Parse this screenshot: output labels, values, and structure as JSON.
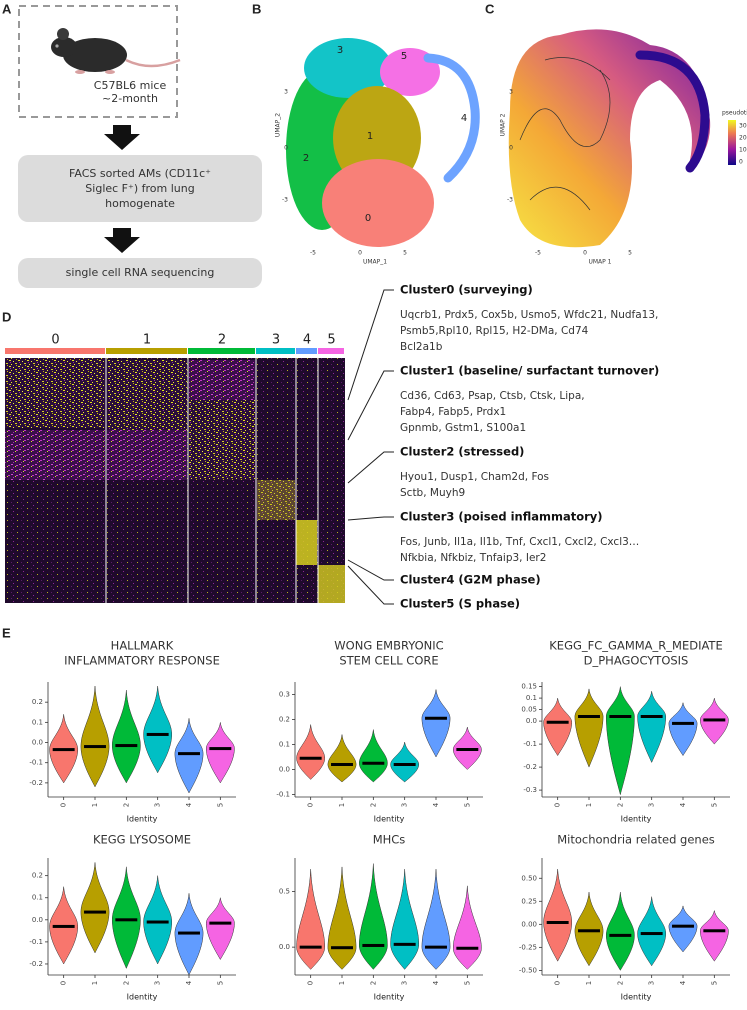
{
  "panel_labels": [
    "A",
    "B",
    "C",
    "D",
    "E"
  ],
  "panel_a": {
    "mouse_label": [
      "C57BL6 mice",
      "~2-month"
    ],
    "steps": [
      [
        "FACS sorted AMs (CD11c⁺",
        "Siglec F⁺) from lung",
        "homogenate"
      ],
      [
        "single cell RNA sequencing"
      ]
    ]
  },
  "panel_b": {
    "xlabel": "UMAP_1",
    "ylabel": "UMAP_2",
    "xticks": [
      "-5",
      "0",
      "5"
    ],
    "yticks": [
      "3",
      "0",
      "-3"
    ],
    "cluster_labels": [
      "0",
      "1",
      "2",
      "3",
      "4",
      "5"
    ]
  },
  "panel_c": {
    "xlabel": "UMAP 1",
    "ylabel": "UMAP 2",
    "xticks": [
      "-5",
      "0",
      "5"
    ],
    "yticks": [
      "3",
      "0",
      "-3"
    ],
    "legend_title": "pseudotime",
    "legend_ticks": [
      "30",
      "20",
      "10",
      "0"
    ]
  },
  "panel_d": {
    "columns": [
      "0",
      "1",
      "2",
      "3",
      "4",
      "5"
    ],
    "clusters": [
      {
        "name": "Cluster0 (surveying)",
        "genes": [
          "Uqcrb1, Prdx5, Cox5b, Usmo5, Wfdc21, Nudfa13,",
          "Psmb5,Rpl10, Rpl15, H2-DMa, Cd74",
          "Bcl2a1b"
        ]
      },
      {
        "name": "Cluster1 (baseline/ surfactant turnover)",
        "genes": [
          "Cd36, Cd63, Psap, Ctsb, Ctsk, Lipa,",
          "Fabp4, Fabp5, Prdx1",
          "Gpnmb, Gstm1, S100a1"
        ]
      },
      {
        "name": "Cluster2 (stressed)",
        "genes": [
          "Hyou1, Dusp1, Cham2d, Fos",
          "Sctb, Muyh9"
        ]
      },
      {
        "name": "Cluster3 (poised inflammatory)",
        "genes": [
          "Fos, Junb, Il1a, Il1b, Tnf, Cxcl1, Cxcl2, Cxcl3…",
          "Nfkbia, Nfkbiz, Tnfaip3, Ier2"
        ]
      },
      {
        "name": "Cluster4 (G2M phase)",
        "genes": []
      },
      {
        "name": "Cluster5 (S phase)",
        "genes": []
      }
    ]
  },
  "chart_data": [
    {
      "type": "violin",
      "title": [
        "HALLMARK",
        "INFLAMMATORY RESPONSE"
      ],
      "xlabel": "Identity",
      "categories": [
        "0",
        "1",
        "2",
        "3",
        "4",
        "5"
      ],
      "values": [
        -0.035,
        -0.02,
        -0.015,
        0.04,
        -0.055,
        -0.03
      ],
      "min": [
        -0.2,
        -0.22,
        -0.2,
        -0.15,
        -0.25,
        -0.2
      ],
      "max": [
        0.14,
        0.28,
        0.26,
        0.28,
        0.12,
        0.1
      ],
      "colors": [
        "#f8766d",
        "#b79f00",
        "#00ba38",
        "#00bfc4",
        "#619cff",
        "#f564e3"
      ],
      "ylim": [
        -0.27,
        0.3
      ],
      "yticks": [
        -0.2,
        -0.1,
        {
          "value": 0,
          "label": "0.0"
        },
        0.1,
        0.2
      ]
    },
    {
      "type": "violin",
      "title": [
        "WONG EMBRYONIC",
        "STEM CELL CORE"
      ],
      "xlabel": "Identity",
      "categories": [
        "0",
        "1",
        "2",
        "3",
        "4",
        "5"
      ],
      "values": [
        0.045,
        0.02,
        0.025,
        0.02,
        0.205,
        0.08
      ],
      "min": [
        -0.04,
        -0.05,
        -0.05,
        -0.05,
        0.05,
        0.0
      ],
      "max": [
        0.18,
        0.14,
        0.16,
        0.11,
        0.32,
        0.17
      ],
      "colors": [
        "#f8766d",
        "#b79f00",
        "#00ba38",
        "#00bfc4",
        "#619cff",
        "#f564e3"
      ],
      "ylim": [
        -0.11,
        0.35
      ],
      "yticks": [
        -0.1,
        {
          "value": 0,
          "label": "0.0"
        },
        0.1,
        0.2,
        0.3
      ]
    },
    {
      "type": "violin",
      "title": [
        "KEGG_FC_GAMMA_R_MEDIATE",
        "D_PHAGOCYTOSIS"
      ],
      "xlabel": "Identity",
      "categories": [
        "0",
        "1",
        "2",
        "3",
        "4",
        "5"
      ],
      "values": [
        -0.005,
        0.02,
        0.02,
        0.02,
        -0.01,
        0.005
      ],
      "min": [
        -0.15,
        -0.2,
        -0.32,
        -0.18,
        -0.15,
        -0.1
      ],
      "max": [
        0.1,
        0.14,
        0.15,
        0.13,
        0.08,
        0.1
      ],
      "colors": [
        "#f8766d",
        "#b79f00",
        "#00ba38",
        "#00bfc4",
        "#619cff",
        "#f564e3"
      ],
      "ylim": [
        -0.33,
        0.17
      ],
      "yticks": [
        -0.3,
        -0.2,
        -0.1,
        {
          "value": 0,
          "label": "0.0"
        },
        0.05,
        0.1,
        0.15
      ]
    },
    {
      "type": "violin",
      "title": [
        "KEGG LYSOSOME"
      ],
      "xlabel": "Identity",
      "categories": [
        "0",
        "1",
        "2",
        "3",
        "4",
        "5"
      ],
      "values": [
        -0.03,
        0.035,
        0.0,
        -0.01,
        -0.06,
        -0.015
      ],
      "min": [
        -0.2,
        -0.15,
        -0.22,
        -0.2,
        -0.25,
        -0.18
      ],
      "max": [
        0.15,
        0.26,
        0.24,
        0.2,
        0.12,
        0.1
      ],
      "colors": [
        "#f8766d",
        "#b79f00",
        "#00ba38",
        "#00bfc4",
        "#619cff",
        "#f564e3"
      ],
      "ylim": [
        -0.25,
        0.28
      ],
      "yticks": [
        -0.2,
        -0.1,
        {
          "value": 0,
          "label": "0.0"
        },
        0.1,
        0.2
      ]
    },
    {
      "type": "violin",
      "title": [
        "MHCs"
      ],
      "xlabel": "Identity",
      "categories": [
        "0",
        "1",
        "2",
        "3",
        "4",
        "5"
      ],
      "values": [
        0.0,
        -0.005,
        0.015,
        0.025,
        0.0,
        -0.01
      ],
      "min": [
        -0.2,
        -0.2,
        -0.2,
        -0.2,
        -0.2,
        -0.2
      ],
      "max": [
        0.7,
        0.72,
        0.75,
        0.7,
        0.7,
        0.55
      ],
      "colors": [
        "#f8766d",
        "#b79f00",
        "#00ba38",
        "#00bfc4",
        "#619cff",
        "#f564e3"
      ],
      "ylim": [
        -0.25,
        0.8
      ],
      "yticks": [
        {
          "value": 0,
          "label": "0.0"
        },
        0.5
      ]
    },
    {
      "type": "violin",
      "title": [
        "Mitochondria related genes"
      ],
      "xlabel": "Identity",
      "categories": [
        "0",
        "1",
        "2",
        "3",
        "4",
        "5"
      ],
      "values": [
        0.02,
        -0.07,
        -0.12,
        -0.1,
        -0.02,
        -0.07
      ],
      "min": [
        -0.4,
        -0.45,
        -0.5,
        -0.45,
        -0.3,
        -0.4
      ],
      "max": [
        0.6,
        0.35,
        0.35,
        0.3,
        0.2,
        0.15
      ],
      "colors": [
        "#f8766d",
        "#b79f00",
        "#00ba38",
        "#00bfc4",
        "#619cff",
        "#f564e3"
      ],
      "ylim": [
        -0.55,
        0.72
      ],
      "yticks": [
        {
          "value": -0.5,
          "label": "-0.50"
        },
        {
          "value": -0.25,
          "label": "-0.25"
        },
        {
          "value": 0,
          "label": "0.00"
        },
        {
          "value": 0.25,
          "label": "0.25"
        },
        {
          "value": 0.5,
          "label": "0.50"
        }
      ]
    }
  ]
}
